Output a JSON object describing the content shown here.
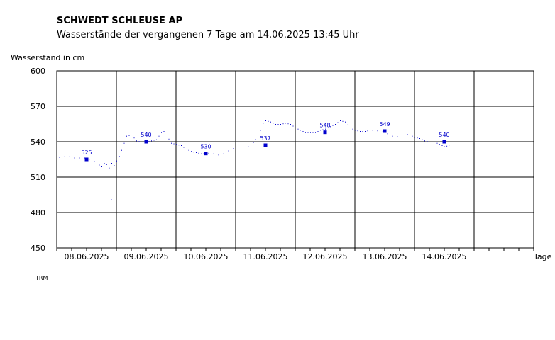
{
  "header": {
    "title": "SCHWEDT SCHLEUSE AP",
    "subtitle": "Wasserstände der vergangenen 7 Tage am 14.06.2025 13:45 Uhr",
    "footer_code": "TRM"
  },
  "colors": {
    "series": "#0000cc",
    "axis": "#000000",
    "grid": "#000000"
  },
  "chart_data": {
    "type": "line",
    "title": "SCHWEDT SCHLEUSE AP",
    "subtitle": "Wasserstände der vergangenen 7 Tage am 14.06.2025 13:45 Uhr",
    "ylabel": "Wasserstand in cm",
    "xlabel": "Tage",
    "ylim": [
      450,
      600
    ],
    "yticks": [
      450,
      480,
      510,
      540,
      570,
      600
    ],
    "xlim": [
      "07.06.2025 00:00",
      "14.06.2025 24:00"
    ],
    "xticks": [
      "08.06.2025",
      "09.06.2025",
      "10.06.2025",
      "11.06.2025",
      "12.06.2025",
      "13.06.2025",
      "14.06.2025"
    ],
    "grid": true,
    "series": [
      {
        "points": [
          [
            "07.06.2025 00:00",
            527
          ],
          [
            "07.06.2025 02:00",
            527
          ],
          [
            "07.06.2025 04:00",
            528
          ],
          [
            "07.06.2025 06:00",
            527
          ],
          [
            "07.06.2025 08:00",
            526
          ],
          [
            "07.06.2025 10:00",
            527
          ],
          [
            "07.06.2025 12:00",
            526
          ],
          [
            "07.06.2025 14:00",
            525
          ],
          [
            "07.06.2025 16:00",
            522
          ],
          [
            "07.06.2025 18:00",
            519
          ],
          [
            "07.06.2025 19:00",
            522
          ],
          [
            "07.06.2025 20:00",
            521
          ],
          [
            "07.06.2025 21:00",
            518
          ],
          [
            "07.06.2025 22:00",
            522
          ],
          [
            "07.06.2025 23:00",
            520
          ],
          [
            "08.06.2025 00:00",
            524
          ],
          [
            "08.06.2025 01:00",
            528
          ],
          [
            "08.06.2025 02:00",
            533
          ],
          [
            "08.06.2025 04:00",
            545
          ],
          [
            "08.06.2025 06:00",
            546
          ],
          [
            "08.06.2025 08:00",
            541
          ],
          [
            "08.06.2025 10:00",
            540
          ],
          [
            "08.06.2025 12:00",
            540
          ],
          [
            "08.06.2025 14:00",
            541
          ],
          [
            "08.06.2025 16:00",
            542
          ],
          [
            "08.06.2025 18:00",
            548
          ],
          [
            "08.06.2025 19:00",
            549
          ],
          [
            "08.06.2025 20:00",
            546
          ],
          [
            "08.06.2025 22:00",
            539
          ],
          [
            "09.06.2025 00:00",
            538
          ],
          [
            "09.06.2025 02:00",
            537
          ],
          [
            "09.06.2025 04:00",
            534
          ],
          [
            "09.06.2025 06:00",
            532
          ],
          [
            "09.06.2025 08:00",
            531
          ],
          [
            "09.06.2025 10:00",
            530
          ],
          [
            "09.06.2025 12:00",
            530
          ],
          [
            "09.06.2025 14:00",
            531
          ],
          [
            "09.06.2025 16:00",
            529
          ],
          [
            "09.06.2025 18:00",
            529
          ],
          [
            "09.06.2025 20:00",
            531
          ],
          [
            "09.06.2025 22:00",
            534
          ],
          [
            "10.06.2025 00:00",
            535
          ],
          [
            "10.06.2025 02:00",
            533
          ],
          [
            "10.06.2025 04:00",
            535
          ],
          [
            "10.06.2025 06:00",
            537
          ],
          [
            "10.06.2025 08:00",
            542
          ],
          [
            "10.06.2025 10:00",
            550
          ],
          [
            "10.06.2025 11:00",
            556
          ],
          [
            "10.06.2025 12:00",
            558
          ],
          [
            "10.06.2025 14:00",
            557
          ],
          [
            "10.06.2025 16:00",
            555
          ],
          [
            "10.06.2025 18:00",
            555
          ],
          [
            "10.06.2025 20:00",
            556
          ],
          [
            "10.06.2025 22:00",
            555
          ],
          [
            "11.06.2025 00:00",
            552
          ],
          [
            "11.06.2025 02:00",
            550
          ],
          [
            "11.06.2025 04:00",
            548
          ],
          [
            "11.06.2025 06:00",
            548
          ],
          [
            "11.06.2025 08:00",
            548
          ],
          [
            "11.06.2025 10:00",
            550
          ],
          [
            "11.06.2025 12:00",
            551
          ],
          [
            "11.06.2025 14:00",
            553
          ],
          [
            "11.06.2025 16:00",
            555
          ],
          [
            "11.06.2025 18:00",
            558
          ],
          [
            "11.06.2025 20:00",
            557
          ],
          [
            "11.06.2025 22:00",
            552
          ],
          [
            "12.06.2025 00:00",
            550
          ],
          [
            "12.06.2025 02:00",
            549
          ],
          [
            "12.06.2025 04:00",
            549
          ],
          [
            "12.06.2025 06:00",
            550
          ],
          [
            "12.06.2025 08:00",
            550
          ],
          [
            "12.06.2025 10:00",
            549
          ],
          [
            "12.06.2025 12:00",
            548
          ],
          [
            "12.06.2025 14:00",
            546
          ],
          [
            "12.06.2025 16:00",
            544
          ],
          [
            "12.06.2025 18:00",
            545
          ],
          [
            "12.06.2025 20:00",
            547
          ],
          [
            "12.06.2025 22:00",
            546
          ],
          [
            "13.06.2025 00:00",
            544
          ],
          [
            "13.06.2025 02:00",
            543
          ],
          [
            "13.06.2025 04:00",
            541
          ],
          [
            "13.06.2025 06:00",
            540
          ],
          [
            "13.06.2025 08:00",
            540
          ],
          [
            "13.06.2025 10:00",
            538
          ],
          [
            "13.06.2025 12:00",
            536
          ],
          [
            "13.06.2025 13:45",
            537
          ]
        ],
        "outliers": [
          [
            "07.06.2025 22:00",
            491
          ]
        ]
      }
    ],
    "annotations": [
      {
        "x": "07.06.2025 12:00",
        "y": 525,
        "label": "525"
      },
      {
        "x": "08.06.2025 12:00",
        "y": 540,
        "label": "540"
      },
      {
        "x": "09.06.2025 12:00",
        "y": 530,
        "label": "530"
      },
      {
        "x": "10.06.2025 12:00",
        "y": 537,
        "label": "537"
      },
      {
        "x": "11.06.2025 12:00",
        "y": 548,
        "label": "548"
      },
      {
        "x": "12.06.2025 12:00",
        "y": 549,
        "label": "549"
      },
      {
        "x": "13.06.2025 12:00",
        "y": 540,
        "label": "540"
      }
    ]
  }
}
